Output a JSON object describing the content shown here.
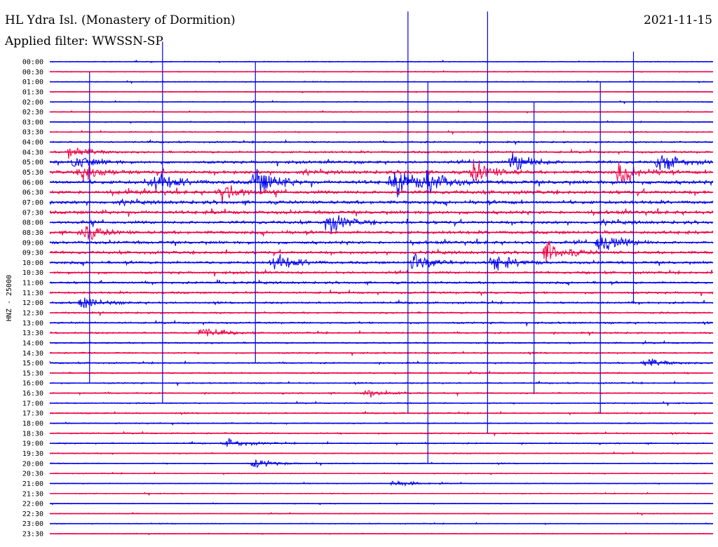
{
  "header": {
    "station": "HL Ydra Isl. (Monastery of Dormition)",
    "filter": "Applied filter: WWSSN-SP",
    "date": "2021-11-15"
  },
  "chart_data": {
    "type": "seismogram (helicorder)",
    "ylabel": "HNZ - 25000",
    "row_labels": [
      "00:00",
      "00:30",
      "01:00",
      "01:30",
      "02:00",
      "02:30",
      "03:00",
      "03:30",
      "04:00",
      "04:30",
      "05:00",
      "05:30",
      "06:00",
      "06:30",
      "07:00",
      "07:30",
      "08:00",
      "08:30",
      "09:00",
      "09:30",
      "10:00",
      "10:30",
      "11:00",
      "11:30",
      "12:00",
      "12:30",
      "13:00",
      "13:30",
      "14:00",
      "14:30",
      "15:00",
      "15:30",
      "16:00",
      "16:30",
      "17:00",
      "17:30",
      "18:00",
      "18:30",
      "19:00",
      "19:30",
      "20:00",
      "20:30",
      "21:00",
      "21:30",
      "22:00",
      "22:30",
      "23:00",
      "23:30"
    ],
    "colors": {
      "even_rows": "#0000ee",
      "odd_rows": "#ee0044"
    },
    "activity_profile": [
      0.05,
      0.05,
      0.05,
      0.05,
      0.08,
      0.08,
      0.1,
      0.15,
      0.3,
      0.45,
      0.65,
      0.85,
      1.0,
      0.95,
      0.9,
      0.85,
      0.8,
      0.8,
      0.75,
      0.7,
      0.65,
      0.55,
      0.5,
      0.45,
      0.4,
      0.35,
      0.35,
      0.3,
      0.28,
      0.25,
      0.25,
      0.25,
      0.22,
      0.22,
      0.2,
      0.2,
      0.18,
      0.22,
      0.2,
      0.15,
      0.12,
      0.1,
      0.08,
      0.06,
      0.05,
      0.05,
      0.05,
      0.05
    ],
    "events": [
      {
        "row": 9,
        "x": 0.03,
        "amp": 1.0
      },
      {
        "row": 10,
        "x": 0.04,
        "amp": 1.2
      },
      {
        "row": 11,
        "x": 0.05,
        "amp": 1.5
      },
      {
        "row": 12,
        "x": 0.16,
        "amp": 1.4
      },
      {
        "row": 12,
        "x": 0.31,
        "amp": 2.2
      },
      {
        "row": 13,
        "x": 0.26,
        "amp": 1.3
      },
      {
        "row": 12,
        "x": 0.52,
        "amp": 2.4
      },
      {
        "row": 11,
        "x": 0.64,
        "amp": 1.8
      },
      {
        "row": 12,
        "x": 0.57,
        "amp": 1.6
      },
      {
        "row": 10,
        "x": 0.7,
        "amp": 1.5
      },
      {
        "row": 11,
        "x": 0.86,
        "amp": 1.6
      },
      {
        "row": 10,
        "x": 0.92,
        "amp": 1.4
      },
      {
        "row": 16,
        "x": 0.42,
        "amp": 1.4
      },
      {
        "row": 17,
        "x": 0.05,
        "amp": 1.2
      },
      {
        "row": 18,
        "x": 0.83,
        "amp": 1.8
      },
      {
        "row": 19,
        "x": 0.75,
        "amp": 1.6
      },
      {
        "row": 20,
        "x": 0.34,
        "amp": 1.3
      },
      {
        "row": 20,
        "x": 0.55,
        "amp": 1.5
      },
      {
        "row": 20,
        "x": 0.67,
        "amp": 1.2
      },
      {
        "row": 24,
        "x": 0.05,
        "amp": 0.8
      },
      {
        "row": 27,
        "x": 0.23,
        "amp": 0.7
      },
      {
        "row": 30,
        "x": 0.9,
        "amp": 0.7
      },
      {
        "row": 33,
        "x": 0.48,
        "amp": 0.6
      },
      {
        "row": 38,
        "x": 0.27,
        "amp": 0.6
      },
      {
        "row": 40,
        "x": 0.31,
        "amp": 0.6
      },
      {
        "row": 42,
        "x": 0.52,
        "amp": 0.5
      }
    ],
    "spikes": [
      {
        "x": 0.54,
        "from_row": -5,
        "to_row": 35
      },
      {
        "x": 0.66,
        "from_row": -5,
        "to_row": 37
      },
      {
        "x": 0.17,
        "from_row": -2,
        "to_row": 34
      },
      {
        "x": 0.31,
        "from_row": 0,
        "to_row": 30
      },
      {
        "x": 0.88,
        "from_row": -1,
        "to_row": 24
      },
      {
        "x": 0.06,
        "from_row": 1,
        "to_row": 32
      },
      {
        "x": 0.57,
        "from_row": 2,
        "to_row": 40
      },
      {
        "x": 0.83,
        "from_row": 2,
        "to_row": 35
      },
      {
        "x": 0.73,
        "from_row": 4,
        "to_row": 33
      }
    ]
  }
}
